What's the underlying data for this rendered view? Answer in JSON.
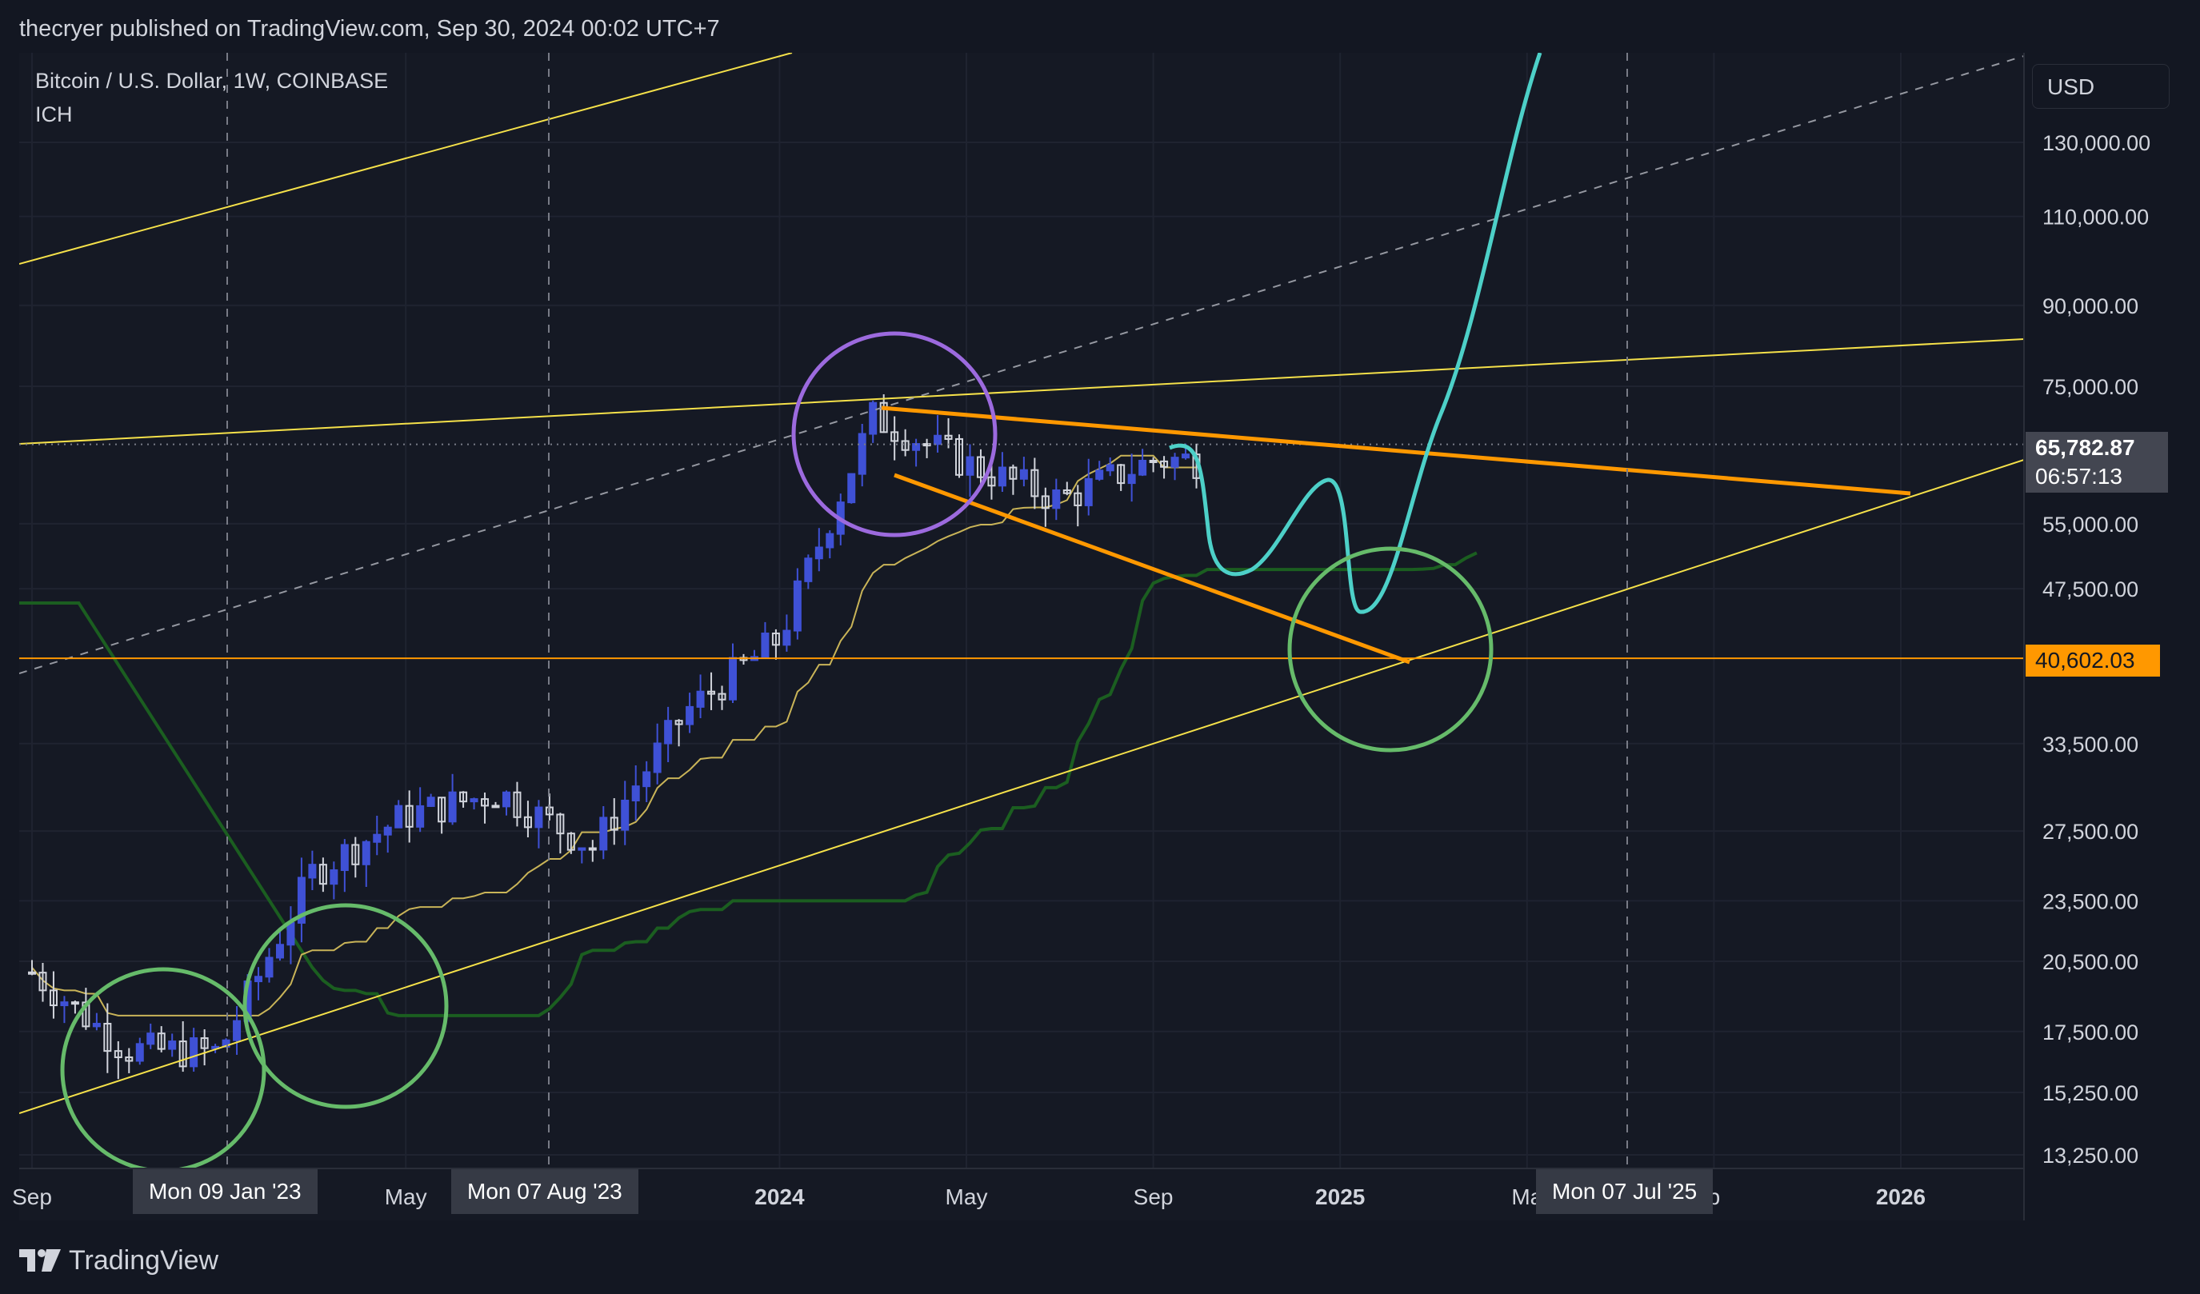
{
  "header": {
    "caption": "thecryer published on TradingView.com, Sep 30, 2024 00:02 UTC+7"
  },
  "legend": {
    "title": "Bitcoin / U.S. Dollar, 1W, COINBASE",
    "indicator": "ICH"
  },
  "currency_button": "USD",
  "price_tags": {
    "current_price": "65,782.87",
    "countdown": "06:57:13",
    "level_price": "40,602.03"
  },
  "time_tags": [
    "Mon 09 Jan '23",
    "Mon 07 Aug '23",
    "Mon 07 Jul '25"
  ],
  "footer": {
    "brand": "TradingView"
  },
  "colors": {
    "background": "#131722",
    "bullish_candle": "#3f51d6",
    "bearish_candle": "#d1d4dc",
    "kijun": "#c9b458",
    "lagging": "#1b5e20",
    "trendline": "#f5e14a",
    "wedge": "#ff9800",
    "projection": "#4dd0c8",
    "highlight_circle": "#66bb6a",
    "top_circle": "#9c6ade"
  },
  "chart_data": {
    "type": "candlestick",
    "scale": "log",
    "y_ticks": [
      130000,
      110000,
      90000,
      75000,
      55000,
      47500,
      33500,
      27500,
      23500,
      20500,
      17500,
      15250,
      13250
    ],
    "y_tick_labels": [
      "130,000.00",
      "110,000.00",
      "90,000.00",
      "75,000.00",
      "55,000.00",
      "47,500.00",
      "33,500.00",
      "27,500.00",
      "23,500.00",
      "20,500.00",
      "17,500.00",
      "15,250.00",
      "13,250.00"
    ],
    "x_ticks": [
      {
        "label": "Sep",
        "date": "2022-09"
      },
      {
        "label": "May",
        "date": "2023-05"
      },
      {
        "label": "2024",
        "date": "2024-01"
      },
      {
        "label": "May",
        "date": "2024-05"
      },
      {
        "label": "Sep",
        "date": "2024-09"
      },
      {
        "label": "2025",
        "date": "2025-01"
      },
      {
        "label": "Ma",
        "date": "2025-05"
      },
      {
        "label": "p",
        "date": "2025-09"
      },
      {
        "label": "2026",
        "date": "2026-01"
      }
    ],
    "price_path": [
      {
        "date": "2022-09",
        "price": 20000
      },
      {
        "date": "2022-11",
        "price": 16800
      },
      {
        "date": "2023-01",
        "price": 16700
      },
      {
        "date": "2023-03",
        "price": 25000
      },
      {
        "date": "2023-05",
        "price": 28500
      },
      {
        "date": "2023-07",
        "price": 30000
      },
      {
        "date": "2023-09",
        "price": 26500
      },
      {
        "date": "2023-11",
        "price": 36000
      },
      {
        "date": "2024-01",
        "price": 42500
      },
      {
        "date": "2024-03",
        "price": 70000
      },
      {
        "date": "2024-05",
        "price": 63000
      },
      {
        "date": "2024-07",
        "price": 58000
      },
      {
        "date": "2024-09",
        "price": 63500
      }
    ],
    "current_price": 65782.87,
    "horizontal_level": 40602.03
  }
}
